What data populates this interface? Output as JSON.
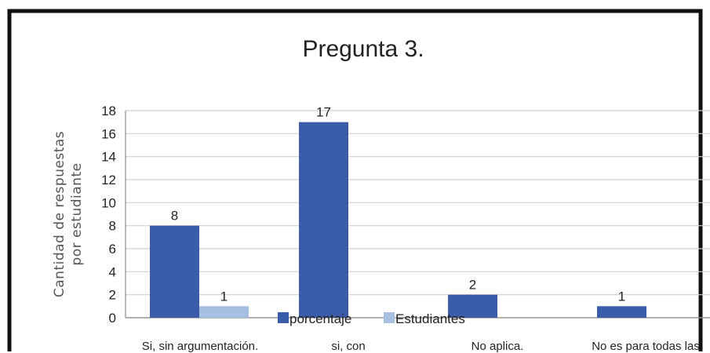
{
  "chart_data": {
    "type": "bar",
    "title": "Pregunta 3.",
    "ylabel_lines": [
      "Cantidad de respuestas",
      "por estudiante"
    ],
    "xlabel": "",
    "categories": [
      "Si, sin argumentación.",
      "si, con",
      "No aplica.",
      "No es para todas las"
    ],
    "series": [
      {
        "name": "porcentaje",
        "values": [
          8,
          17,
          2,
          1
        ],
        "color": "#3b5ca8"
      },
      {
        "name": "Estudiantes",
        "values": [
          1,
          null,
          null,
          null
        ],
        "color": "#a6c0e4"
      }
    ],
    "ylim": [
      0,
      18
    ],
    "yticks": [
      0,
      2,
      4,
      6,
      8,
      10,
      12,
      14,
      16,
      18
    ],
    "grid": true,
    "legend_position": "bottom"
  },
  "colors": {
    "frame": "#111111",
    "grid": "#d0d0d0",
    "axis": "#888888"
  }
}
